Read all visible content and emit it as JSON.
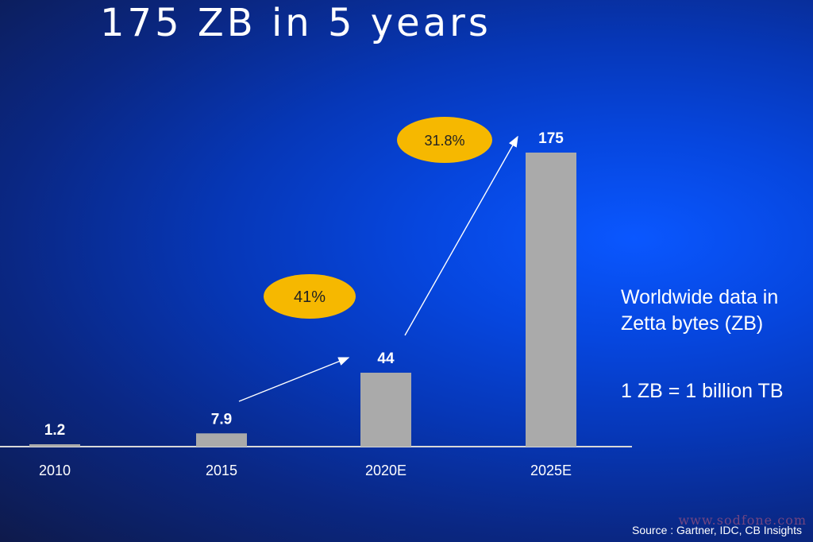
{
  "title": "175 ZB in 5 years",
  "colors": {
    "bar": "#aaaaaa",
    "axis": "#d8d8d8",
    "bubble": "#f6b800",
    "text": "#ffffff",
    "bubble_text": "#222222"
  },
  "chart_data": {
    "type": "bar",
    "categories": [
      "2010",
      "2015",
      "2020E",
      "2025E"
    ],
    "values": [
      1.2,
      7.9,
      44,
      175
    ],
    "data_labels": [
      "1.2",
      "7.9",
      "44",
      "175"
    ],
    "ylim": [
      0,
      175
    ],
    "grid": false,
    "annotations": [
      {
        "label": "41%",
        "from_category": "2015",
        "to_category": "2020E"
      },
      {
        "label": "31.8%",
        "from_category": "2020E",
        "to_category": "2025E"
      }
    ]
  },
  "side_notes": {
    "description": "Worldwide data in\nZetta bytes (ZB)",
    "conversion": "1 ZB = 1 billion TB"
  },
  "source": "Source : Gartner, IDC, CB Insights",
  "watermark": "www.sodfone.com"
}
